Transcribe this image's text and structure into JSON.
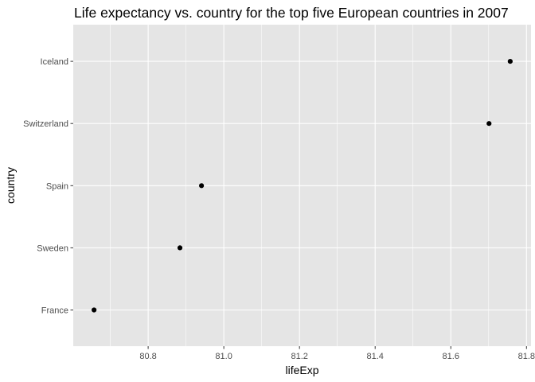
{
  "chart_data": {
    "type": "scatter",
    "title": "Life expectancy vs. country for the top five European countries in 2007",
    "xlabel": "lifeExp",
    "ylabel": "country",
    "categories": [
      "France",
      "Sweden",
      "Spain",
      "Switzerland",
      "Iceland"
    ],
    "points": [
      {
        "country": "Iceland",
        "lifeExp": 81.757
      },
      {
        "country": "Switzerland",
        "lifeExp": 81.701
      },
      {
        "country": "Spain",
        "lifeExp": 80.941
      },
      {
        "country": "Sweden",
        "lifeExp": 80.884
      },
      {
        "country": "France",
        "lifeExp": 80.657
      }
    ],
    "xlim": [
      80.602,
      81.812
    ],
    "xticks": [
      80.8,
      81.0,
      81.2,
      81.4,
      81.6,
      81.8
    ],
    "xtick_labels": [
      "80.8",
      "81.0",
      "81.2",
      "81.4",
      "81.6",
      "81.8"
    ],
    "grid": true,
    "legend": "none",
    "colors": {
      "panel_background": "#e5e5e5",
      "grid_major": "#ffffff",
      "point": "#000000",
      "tick_label": "#4d4d4d",
      "tick_mark": "#333333"
    }
  }
}
